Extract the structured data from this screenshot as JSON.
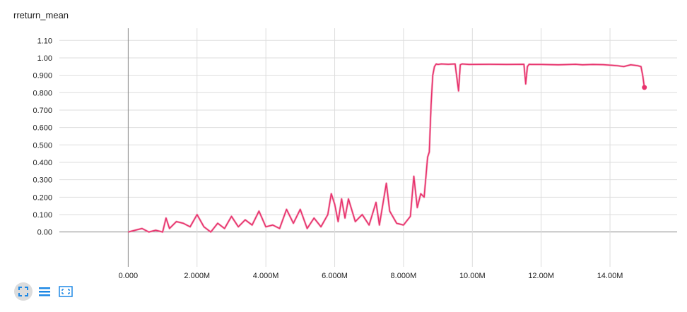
{
  "colors": {
    "line": "#e8336d",
    "raw_line": "#f5b7ca",
    "grid": "#dddddd",
    "zero_axis": "#888888",
    "icon": "#1e88e5"
  },
  "toolbar": {
    "icons": [
      "fit-domain-icon",
      "log-scale-icon",
      "select-zoom-icon"
    ]
  },
  "chart_data": {
    "type": "line",
    "title": "rreturn_mean",
    "xlabel": "",
    "ylabel": "",
    "xlim": [
      -2000000,
      15950000
    ],
    "ylim": [
      -0.2,
      1.17
    ],
    "x_ticks": [
      0,
      2000000,
      4000000,
      6000000,
      8000000,
      10000000,
      12000000,
      14000000
    ],
    "x_tick_labels": [
      "0.000",
      "2.000M",
      "4.000M",
      "6.000M",
      "8.000M",
      "10.00M",
      "12.00M",
      "14.00M"
    ],
    "y_ticks": [
      0,
      0.1,
      0.2,
      0.3,
      0.4,
      0.5,
      0.6,
      0.7,
      0.8,
      0.9,
      1.0,
      1.1
    ],
    "y_tick_labels": [
      "0.00",
      "0.100",
      "0.200",
      "0.300",
      "0.400",
      "0.500",
      "0.600",
      "0.700",
      "0.800",
      "0.900",
      "1.00",
      "1.10"
    ],
    "grid": true,
    "series": [
      {
        "smoothed": true,
        "x": [
          0,
          200000,
          400000,
          600000,
          800000,
          1000000,
          1100000,
          1200000,
          1400000,
          1600000,
          1800000,
          2000000,
          2200000,
          2400000,
          2600000,
          2800000,
          3000000,
          3200000,
          3400000,
          3600000,
          3800000,
          4000000,
          4200000,
          4400000,
          4600000,
          4800000,
          5000000,
          5200000,
          5400000,
          5600000,
          5800000,
          5900000,
          6000000,
          6100000,
          6200000,
          6300000,
          6400000,
          6600000,
          6800000,
          7000000,
          7200000,
          7300000,
          7500000,
          7600000,
          7800000,
          8000000,
          8200000,
          8300000,
          8400000,
          8500000,
          8600000,
          8700000,
          8750000,
          8800000,
          8850000,
          8900000,
          8950000,
          9000000,
          9100000,
          9300000,
          9500000,
          9600000,
          9650000,
          9700000,
          9900000,
          10500000,
          11000000,
          11500000,
          11550000,
          11600000,
          11650000,
          11700000,
          12000000,
          12500000,
          13000000,
          13200000,
          13500000,
          13800000,
          14200000,
          14400000,
          14600000,
          14800000,
          14900000,
          14950000,
          15000000
        ],
        "y": [
          0.0,
          0.01,
          0.02,
          0.0,
          0.01,
          0.0,
          0.08,
          0.02,
          0.06,
          0.05,
          0.03,
          0.1,
          0.03,
          0.0,
          0.05,
          0.02,
          0.09,
          0.03,
          0.07,
          0.04,
          0.12,
          0.03,
          0.04,
          0.02,
          0.13,
          0.05,
          0.13,
          0.02,
          0.08,
          0.03,
          0.1,
          0.22,
          0.16,
          0.06,
          0.19,
          0.08,
          0.19,
          0.06,
          0.1,
          0.04,
          0.17,
          0.04,
          0.28,
          0.12,
          0.05,
          0.04,
          0.09,
          0.32,
          0.14,
          0.22,
          0.2,
          0.43,
          0.46,
          0.73,
          0.9,
          0.95,
          0.965,
          0.962,
          0.965,
          0.963,
          0.965,
          0.81,
          0.96,
          0.965,
          0.962,
          0.963,
          0.962,
          0.963,
          0.85,
          0.95,
          0.963,
          0.962,
          0.962,
          0.96,
          0.963,
          0.96,
          0.962,
          0.961,
          0.955,
          0.95,
          0.96,
          0.955,
          0.95,
          0.9,
          0.83
        ]
      }
    ]
  }
}
